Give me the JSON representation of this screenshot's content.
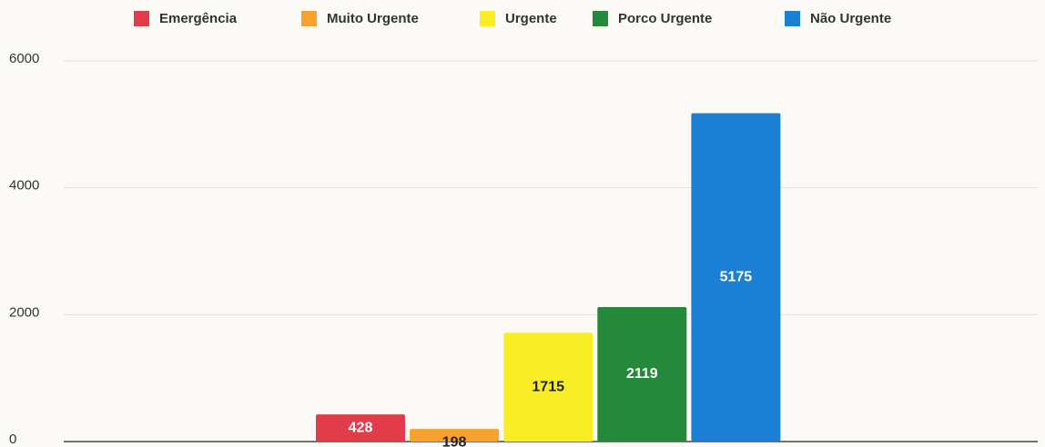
{
  "chart_data": {
    "type": "bar",
    "categories": [
      null
    ],
    "series": [
      {
        "name": "Emergência",
        "color": "#e03c4a",
        "label_color": "#ffffff",
        "values": [
          428
        ]
      },
      {
        "name": "Muito Urgente",
        "color": "#f7a22c",
        "label_color": "#222222",
        "values": [
          198
        ]
      },
      {
        "name": "Urgente",
        "color": "#f9ee25",
        "label_color": "#222222",
        "values": [
          1715
        ]
      },
      {
        "name": "Porco Urgente",
        "color": "#24893a",
        "label_color": "#ffffff",
        "values": [
          2119
        ]
      },
      {
        "name": "Não Urgente",
        "color": "#1b7fd4",
        "label_color": "#ffffff",
        "values": [
          5175
        ]
      }
    ],
    "ylim": [
      0,
      6000
    ],
    "yticks": [
      0,
      2000,
      4000,
      6000
    ],
    "grid": true,
    "legend": "top"
  }
}
